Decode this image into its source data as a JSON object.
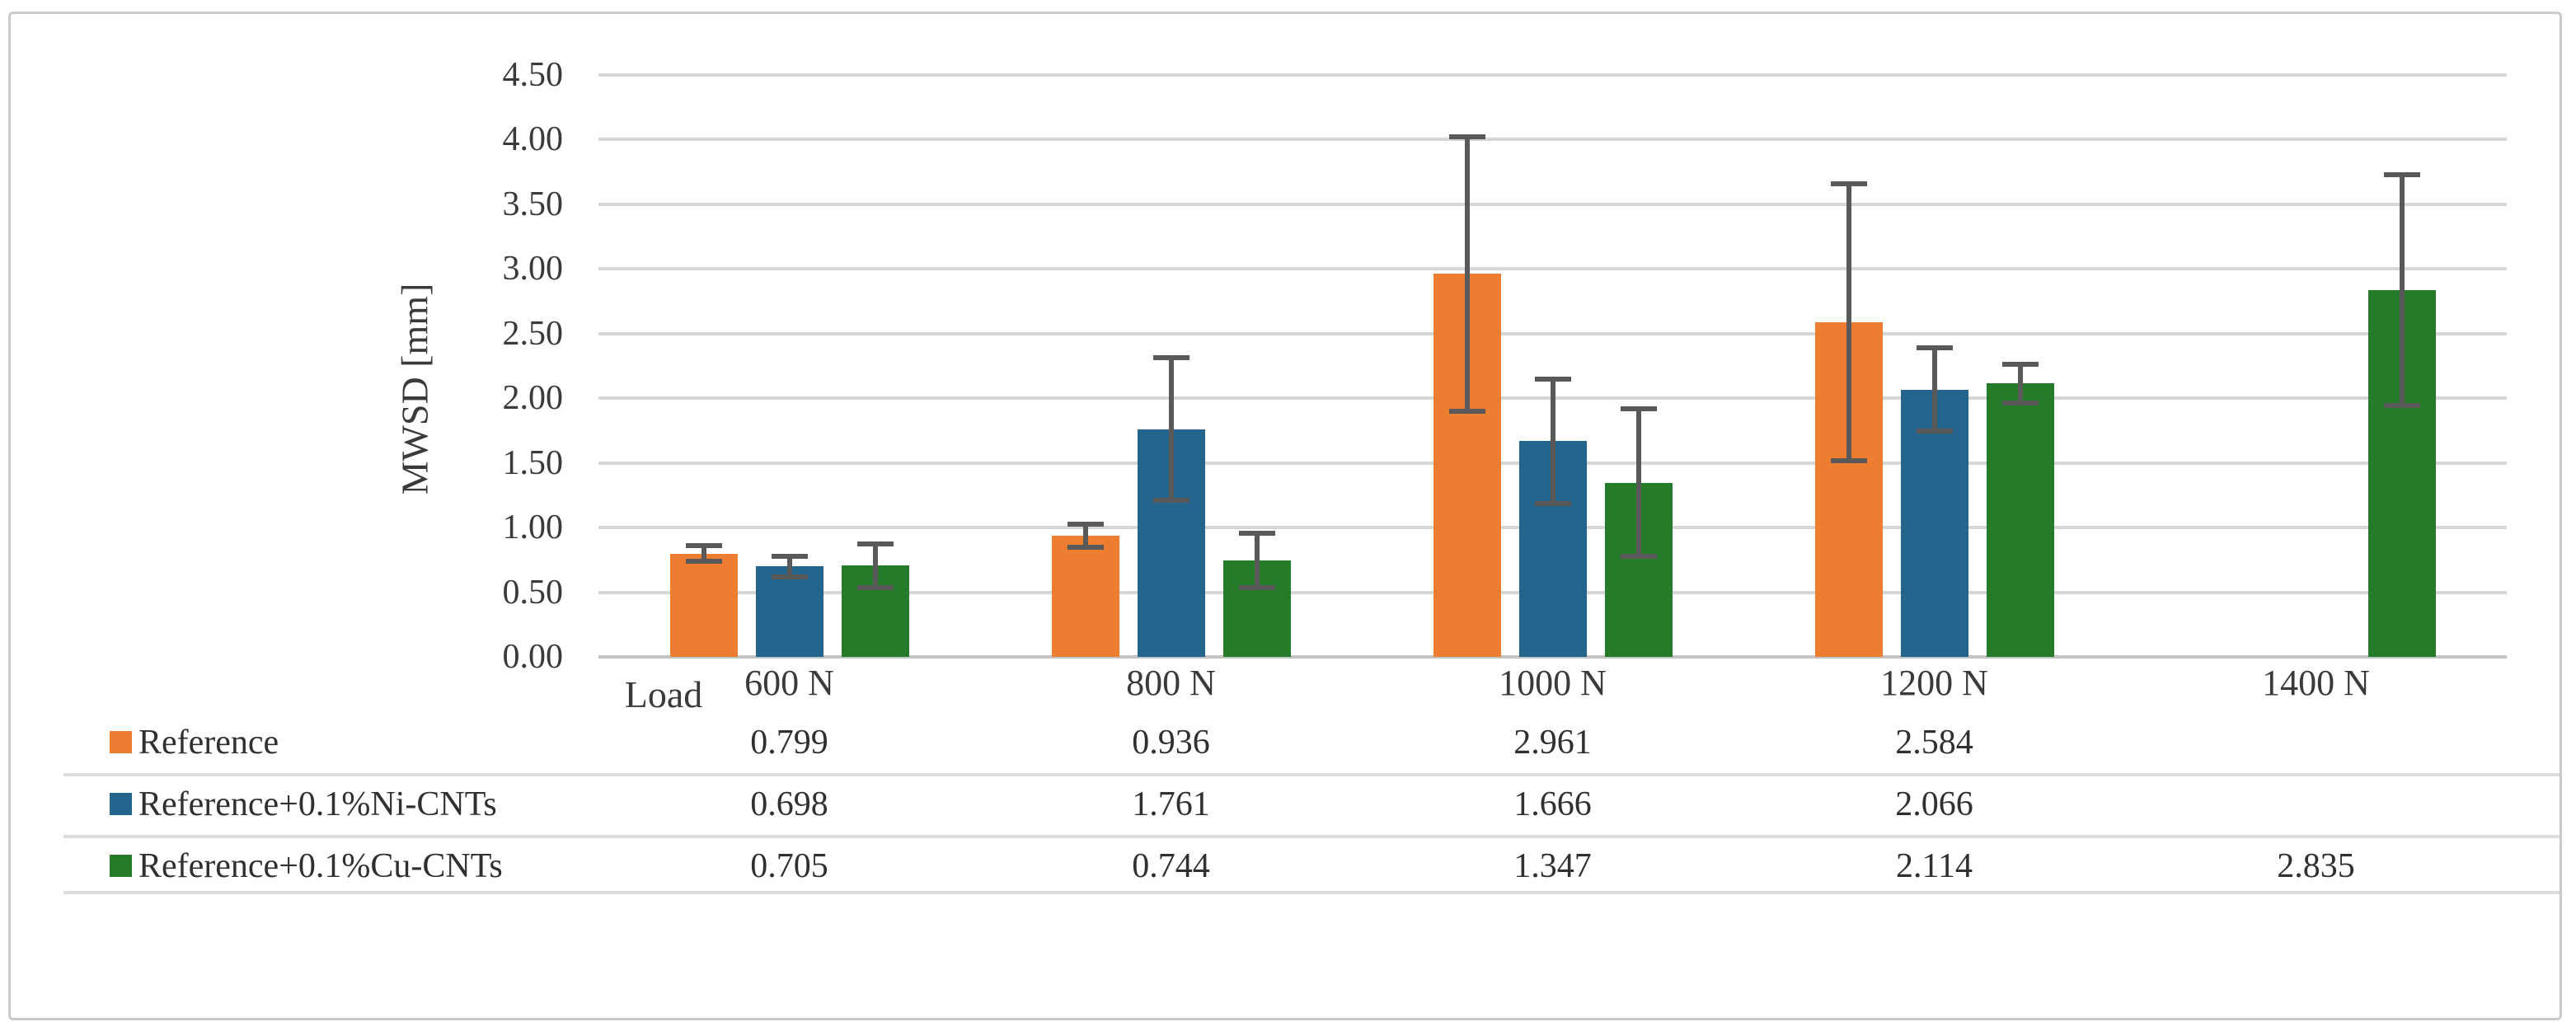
{
  "chart_data": {
    "type": "bar",
    "title": "",
    "ylabel": "MWSD [mm]",
    "x_header": "Load",
    "categories": [
      "600 N",
      "800 N",
      "1000 N",
      "1200 N",
      "1400 N"
    ],
    "ylim": [
      0,
      4.5
    ],
    "ytick_step": 0.5,
    "ytick_labels": [
      "0.00",
      "0.50",
      "1.00",
      "1.50",
      "2.00",
      "2.50",
      "3.00",
      "3.50",
      "4.00",
      "4.50"
    ],
    "grid": "horizontal",
    "legend_position": "table-left",
    "series": [
      {
        "name": "Reference",
        "color": "#ED7D31",
        "values": [
          0.799,
          0.936,
          2.961,
          2.584,
          null
        ],
        "errors": [
          0.06,
          0.09,
          1.06,
          1.07,
          null
        ],
        "display": [
          "0.799",
          "0.936",
          "2.961",
          "2.584",
          ""
        ]
      },
      {
        "name": "Reference+0.1%Ni-CNTs",
        "color": "#25648C",
        "values": [
          0.698,
          1.761,
          1.666,
          2.066,
          null
        ],
        "errors": [
          0.08,
          0.55,
          0.48,
          0.32,
          null
        ],
        "display": [
          "0.698",
          "1.761",
          "1.666",
          "2.066",
          ""
        ]
      },
      {
        "name": "Reference+0.1%Cu-CNTs",
        "color": "#267B2B",
        "values": [
          0.705,
          0.744,
          1.347,
          2.114,
          2.835
        ],
        "errors": [
          0.17,
          0.21,
          0.57,
          0.15,
          0.89
        ],
        "display": [
          "0.705",
          "0.744",
          "1.347",
          "2.114",
          "2.835"
        ]
      }
    ]
  },
  "style_colors": {
    "gridline": "#d6d6d6",
    "baseline": "#c3c3c3",
    "error_bar": "#595959",
    "row_separator": "#dcdcdc",
    "frame_border": "#cacaca",
    "axis_text": "#3a3a3a",
    "table_text": "#303030"
  }
}
